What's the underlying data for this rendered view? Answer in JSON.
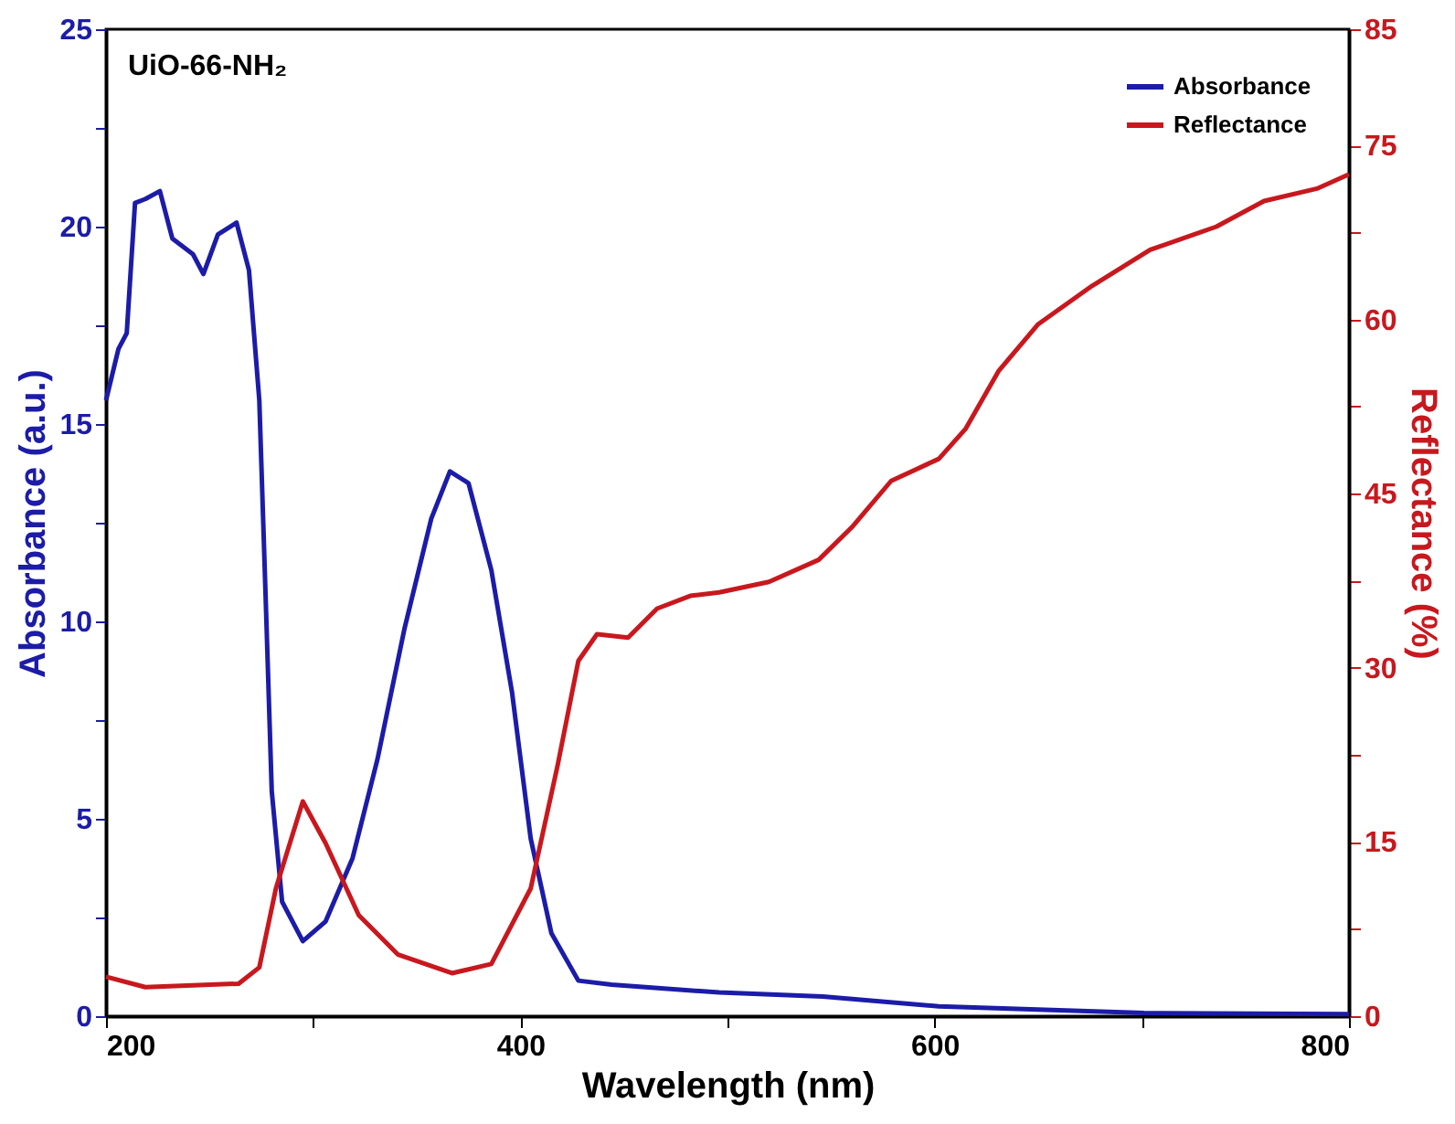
{
  "chart_data": {
    "type": "line",
    "xlabel": "Wavelength (nm)",
    "ylabel": "Absorbance (a.u.)",
    "y2label": "Reflectance (%)",
    "annotations": [
      "UiO-66-NH₂"
    ],
    "xlim": [
      200,
      800
    ],
    "xticks": [
      200,
      {
        "value": 300,
        "label": null
      },
      400,
      {
        "value": 500,
        "label": null
      },
      600,
      {
        "value": 700,
        "label": null
      },
      800
    ],
    "ylim": [
      0,
      25
    ],
    "yticks": [
      0,
      {
        "value": 2.5,
        "label": null
      },
      5,
      {
        "value": 7.5,
        "label": null
      },
      10,
      {
        "value": 12.5,
        "label": null
      },
      15,
      {
        "value": 17.5,
        "label": null
      },
      20,
      {
        "value": 22.5,
        "label": null
      },
      25
    ],
    "y2lim": [
      0,
      85
    ],
    "y2ticks": [
      0,
      {
        "value": 7.5,
        "label": null
      },
      15,
      {
        "value": 22.5,
        "label": null
      },
      30,
      {
        "value": 37.5,
        "label": null
      },
      45,
      {
        "value": 52.5,
        "label": null
      },
      60,
      {
        "value": 67.5,
        "label": null
      },
      75,
      85
    ],
    "legend": "top right",
    "grid": false,
    "marker": "none",
    "line_style": "solid",
    "series": [
      {
        "name": "Absorbance",
        "color": "#1c1ca8",
        "x": [
          200,
          206,
          210,
          214,
          219,
          226,
          232,
          242,
          247,
          254,
          263,
          269,
          274,
          277,
          280,
          285,
          295,
          306,
          319,
          331,
          344,
          357,
          366,
          375,
          386,
          396,
          405,
          415,
          428,
          444,
          496,
          546,
          602,
          701,
          800
        ],
        "values": [
          15.6,
          16.9,
          17.3,
          20.6,
          20.7,
          20.9,
          19.7,
          19.3,
          18.8,
          19.8,
          20.1,
          18.9,
          15.6,
          10.7,
          5.7,
          2.9,
          1.9,
          2.4,
          4.0,
          6.5,
          9.8,
          12.6,
          13.8,
          13.5,
          11.3,
          8.2,
          4.5,
          2.1,
          0.9,
          0.8,
          0.6,
          0.5,
          0.25,
          0.08,
          0.05
        ]
      },
      {
        "name": "Reflectance",
        "color": "#c8181e",
        "axis": "y2",
        "x": [
          200,
          219,
          264,
          274,
          282,
          295,
          306,
          322,
          341,
          367,
          386,
          405,
          418,
          428,
          437,
          452,
          466,
          482,
          496,
          520,
          544,
          560,
          579,
          602,
          615,
          631,
          650,
          676,
          704,
          736,
          759,
          785,
          800
        ],
        "values": [
          3.4,
          2.5,
          2.8,
          4.2,
          11.0,
          18.5,
          14.9,
          8.7,
          5.3,
          3.7,
          4.5,
          11.0,
          21.6,
          30.6,
          32.9,
          32.6,
          35.1,
          36.2,
          36.5,
          37.4,
          39.3,
          42.1,
          46.1,
          48.0,
          50.6,
          55.6,
          59.6,
          62.9,
          66.0,
          68.0,
          70.2,
          71.3,
          72.5
        ]
      }
    ]
  }
}
